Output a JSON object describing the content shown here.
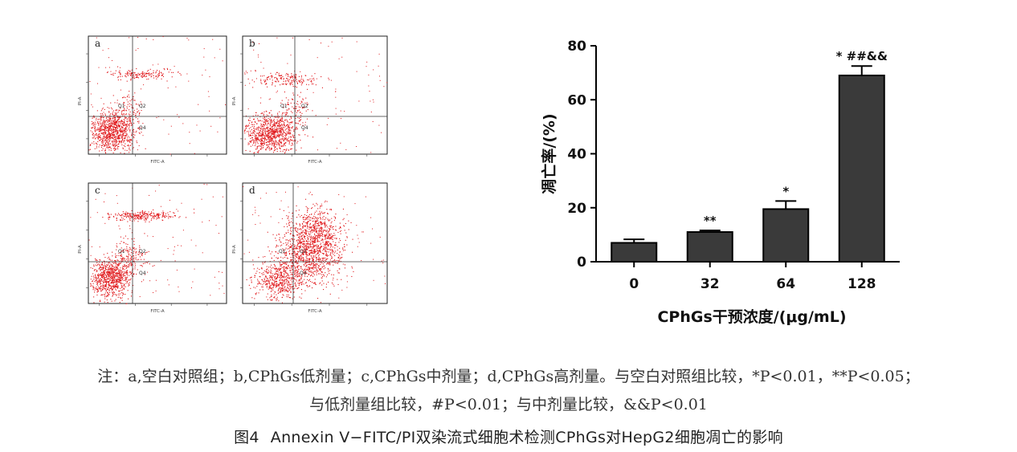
{
  "flow_panels": [
    {
      "letter": "a",
      "x_axis": "FITC-A",
      "y_axis": "PI-A",
      "quadrants": [
        "Q1",
        "Q2",
        "Q4"
      ]
    },
    {
      "letter": "b",
      "x_axis": "FITC-A",
      "y_axis": "PI-A",
      "quadrants": [
        "Q1",
        "Q2",
        "Q4"
      ]
    },
    {
      "letter": "c",
      "x_axis": "FITC-A",
      "y_axis": "PI-A",
      "quadrants": [
        "Q1",
        "Q2",
        "Q4"
      ]
    },
    {
      "letter": "d",
      "x_axis": "FITC-A",
      "y_axis": "PI-A",
      "quadrants": [
        "Q1",
        "Q2",
        "Q4"
      ]
    }
  ],
  "colors": {
    "dots": "#e0181b",
    "bars": "#3a3a3a",
    "frame": "#222222"
  },
  "chart_data": {
    "type": "bar",
    "categories": [
      "0",
      "32",
      "64",
      "128"
    ],
    "values": [
      7,
      11,
      19.5,
      69
    ],
    "errors": [
      1.3,
      0.6,
      3,
      3.5
    ],
    "annotations": [
      "",
      "**",
      "*",
      "* ##&&"
    ],
    "xlabel": "CPhGs干预浓度/(μg/mL)",
    "ylabel": "凋亡率/(%)",
    "ylim": [
      0,
      80
    ],
    "yticks": [
      "0",
      "20",
      "40",
      "60",
      "80"
    ],
    "grid": false
  },
  "note_line1": "注：a,空白对照组；b,CPhGs低剂量；c,CPhGs中剂量；d,CPhGs高剂量。与空白对照组比较，*P<0.01，**P<0.05；",
  "note_line2": "与低剂量组比较，#P<0.01；与中剂量比较，&&P<0.01",
  "caption_label": "图4",
  "caption_text": "Annexin V−FITC/PI双染流式细胞术检测CPhGs对HepG2细胞凋亡的影响"
}
